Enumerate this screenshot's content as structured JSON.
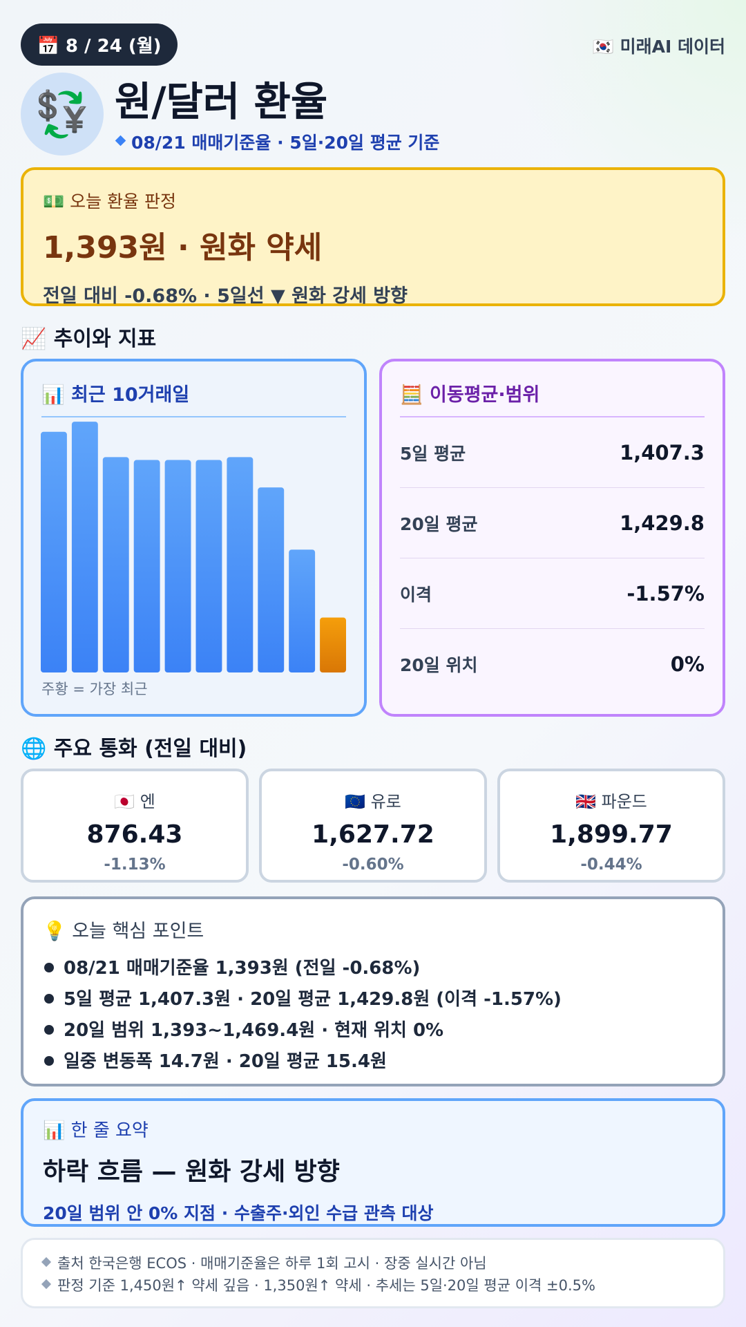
{
  "header": {
    "date": "📅 8 / 24 (월)",
    "source_badge": "🇰🇷 미래AI 데이터",
    "icon": "💱",
    "title": "원/달러 환율",
    "subtitle": "08/21 매매기준율 · 5일·20일 평균 기준"
  },
  "verdict": {
    "label": "💵 오늘 환율 판정",
    "headline": "1,393원 · 원화 약세",
    "detail": "전일 대비 -0.68% · 5일선 ▼ 원화 강세 방향"
  },
  "trend": {
    "heading": "📈 추이와 지표",
    "note": "주황 = 가장 최근"
  },
  "chart_data": {
    "type": "bar",
    "title": "📊 최근 10거래일",
    "categories": [
      null,
      null,
      null,
      null,
      null,
      null,
      null,
      null,
      null,
      null
    ],
    "values": [
      1418.7,
      1420.1,
      1415.2,
      1414.8,
      1414.8,
      1414.8,
      1415.2,
      1411.0,
      1402.4,
      1393.0
    ],
    "color": "#3b82f6",
    "highlight_color": "#f59e0b",
    "ylim": [
      1385.4,
      1420.4
    ]
  },
  "moving_average": {
    "title": "🧮 이동평균·범위",
    "rows": [
      [
        "5일 평균",
        "1,407.3"
      ],
      [
        "20일 평균",
        "1,429.8"
      ],
      [
        "이격",
        "-1.57%"
      ],
      [
        "20일 위치",
        "0%"
      ]
    ]
  },
  "currencies": {
    "heading": "🌐 주요 통화 (전일 대비)",
    "items": [
      {
        "name": "🇯🇵 엔",
        "value": "876.43",
        "change": "-1.13%"
      },
      {
        "name": "🇪🇺 유로",
        "value": "1,627.72",
        "change": "-0.60%"
      },
      {
        "name": "🇬🇧 파운드",
        "value": "1,899.77",
        "change": "-0.44%"
      }
    ]
  },
  "points": {
    "title": "💡 오늘 핵심 포인트",
    "items": [
      "08/21 매매기준율 1,393원 (전일 -0.68%)",
      "5일 평균 1,407.3원 · 20일 평균 1,429.8원 (이격 -1.57%)",
      "20일 범위 1,393~1,469.4원 · 현재 위치 0%",
      "일중 변동폭 14.7원 · 20일 평균 15.4원"
    ]
  },
  "summary": {
    "label": "📊 한 줄 요약",
    "headline": "하락 흐름 — 원화 강세 방향",
    "detail": "20일 범위 안 0% 지점 · 수출주·외인 수급 관측 대상"
  },
  "footer": [
    "출처 한국은행 ECOS · 매매기준율은 하루 1회 고시 · 장중 실시간 아님",
    "판정 기준 1,450원↑ 약세 깊음 · 1,350원↑ 약세 · 추세는 5일·20일 평균 이격 ±0.5%"
  ]
}
